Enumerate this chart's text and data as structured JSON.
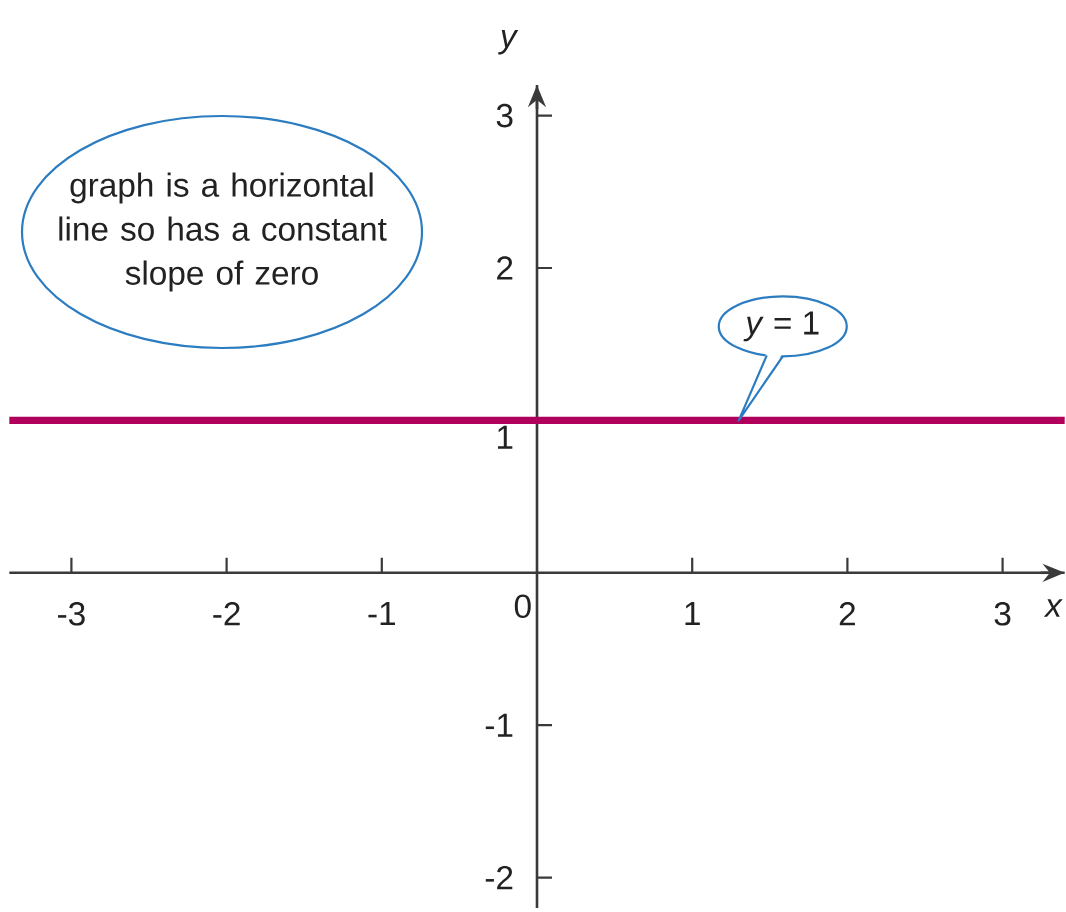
{
  "chart_data": {
    "type": "line",
    "xlabel": "x",
    "ylabel": "y",
    "annotations": [
      "graph is a horizontal line so has a constant slope of zero",
      {
        "text": "*y* = 1",
        "x": 1.3,
        "y": 1
      }
    ],
    "series": [
      {
        "x": [
          -3.4,
          3.4
        ],
        "values": [
          1,
          1
        ],
        "color": "#b0005b"
      }
    ],
    "xlim": [
      -3.4,
      3.4
    ],
    "ylim": [
      -2.2,
      3.2
    ],
    "xticks": [
      -3,
      -2,
      -1,
      0,
      1,
      2,
      3
    ],
    "yticks": [
      -2,
      -1,
      1,
      2,
      3
    ],
    "marker": "none",
    "line_style": "solid"
  }
}
